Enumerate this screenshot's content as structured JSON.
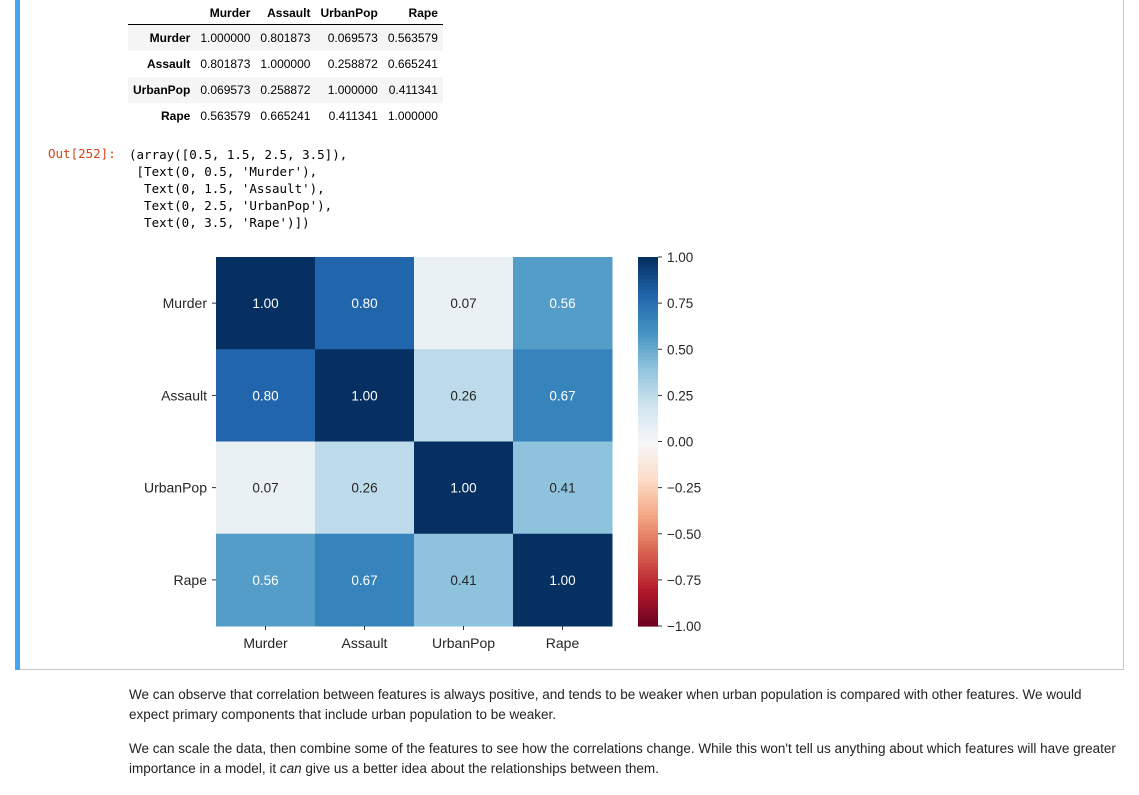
{
  "dataframe": {
    "columns": [
      "Murder",
      "Assault",
      "UrbanPop",
      "Rape"
    ],
    "rows": [
      {
        "index": "Murder",
        "values": [
          "1.000000",
          "0.801873",
          "0.069573",
          "0.563579"
        ]
      },
      {
        "index": "Assault",
        "values": [
          "0.801873",
          "1.000000",
          "0.258872",
          "0.665241"
        ]
      },
      {
        "index": "UrbanPop",
        "values": [
          "0.069573",
          "0.258872",
          "1.000000",
          "0.411341"
        ]
      },
      {
        "index": "Rape",
        "values": [
          "0.563579",
          "0.665241",
          "0.411341",
          "1.000000"
        ]
      }
    ]
  },
  "output": {
    "prompt": "Out[252]:",
    "lines": [
      "(array([0.5, 1.5, 2.5, 3.5]),",
      " [Text(0, 0.5, 'Murder'),",
      "  Text(0, 1.5, 'Assault'),",
      "  Text(0, 2.5, 'UrbanPop'),",
      "  Text(0, 3.5, 'Rape')])"
    ]
  },
  "chart_data": {
    "type": "heatmap",
    "x_categories": [
      "Murder",
      "Assault",
      "UrbanPop",
      "Rape"
    ],
    "y_categories": [
      "Murder",
      "Assault",
      "UrbanPop",
      "Rape"
    ],
    "values": [
      [
        1.0,
        0.8,
        0.07,
        0.56
      ],
      [
        0.8,
        1.0,
        0.26,
        0.67
      ],
      [
        0.07,
        0.26,
        1.0,
        0.41
      ],
      [
        0.56,
        0.67,
        0.41,
        1.0
      ]
    ],
    "annotations": [
      [
        "1.00",
        "0.80",
        "0.07",
        "0.56"
      ],
      [
        "0.80",
        "1.00",
        "0.26",
        "0.67"
      ],
      [
        "0.07",
        "0.26",
        "1.00",
        "0.41"
      ],
      [
        "0.56",
        "0.67",
        "0.41",
        "1.00"
      ]
    ],
    "colormap": "RdBu",
    "vmin": -1.0,
    "vmax": 1.0,
    "colorbar_ticks": [
      1.0,
      0.75,
      0.5,
      0.25,
      0.0,
      -0.25,
      -0.5,
      -0.75,
      -1.0
    ],
    "colorbar_tick_labels": [
      "1.00",
      "0.75",
      "0.50",
      "0.25",
      "0.00",
      "−0.25",
      "−0.50",
      "−0.75",
      "−1.00"
    ]
  },
  "prose": {
    "p1": "We can observe that correlation between features is always positive, and tends to be weaker when urban population is compared with other features. We would expect primary components that include urban population to be weaker.",
    "p2_before": "We can scale the data, then combine some of the features to see how the correlations change. While this won't tell us anything about which features will have greater importance in a model, it ",
    "p2_em": "can",
    "p2_after": " give us a better idea about the relationships between them."
  },
  "colors": {
    "cell_bar": "#42a5f5",
    "prompt_out": "#d84315"
  }
}
